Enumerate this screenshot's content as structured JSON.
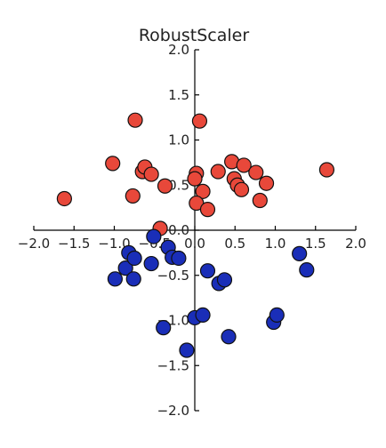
{
  "chart_data": {
    "type": "scatter",
    "title": "RobustScaler",
    "xlabel": "",
    "ylabel": "",
    "xlim": [
      -2.0,
      2.0
    ],
    "ylim": [
      -2.0,
      2.0
    ],
    "grid": false,
    "spines": "centered",
    "xticks": [
      -2.0,
      -1.5,
      -1.0,
      -0.5,
      0.0,
      0.5,
      1.0,
      1.5,
      2.0
    ],
    "xtick_labels": [
      "−2.0",
      "−1.5",
      "−1.0",
      "−0.5",
      "0.0",
      "0.5",
      "1.0",
      "1.5",
      "2.0"
    ],
    "yticks": [
      -2.0,
      -1.5,
      -1.0,
      -0.5,
      0.0,
      0.5,
      1.0,
      1.5,
      2.0
    ],
    "ytick_labels": [
      "−2.0",
      "−1.5",
      "−1.0",
      "−0.5",
      "0.0",
      "0.5",
      "1.0",
      "1.5",
      "2.0"
    ],
    "series": [
      {
        "color": "#e8483a",
        "points": [
          [
            -1.62,
            0.35
          ],
          [
            -1.02,
            0.74
          ],
          [
            -0.74,
            1.22
          ],
          [
            -0.65,
            0.65
          ],
          [
            -0.62,
            0.7
          ],
          [
            -0.54,
            0.62
          ],
          [
            -0.77,
            0.38
          ],
          [
            -0.37,
            0.49
          ],
          [
            -0.43,
            0.02
          ],
          [
            0.02,
            0.63
          ],
          [
            0.0,
            0.57
          ],
          [
            0.1,
            0.43
          ],
          [
            0.06,
            1.21
          ],
          [
            0.02,
            0.3
          ],
          [
            0.16,
            0.23
          ],
          [
            0.29,
            0.65
          ],
          [
            0.46,
            0.76
          ],
          [
            0.61,
            0.72
          ],
          [
            0.49,
            0.57
          ],
          [
            0.53,
            0.5
          ],
          [
            0.58,
            0.45
          ],
          [
            0.76,
            0.64
          ],
          [
            0.89,
            0.52
          ],
          [
            0.81,
            0.33
          ],
          [
            1.64,
            0.67
          ]
        ]
      },
      {
        "color": "#1a2eb8",
        "points": [
          [
            -0.99,
            -0.54
          ],
          [
            -0.86,
            -0.42
          ],
          [
            -0.82,
            -0.25
          ],
          [
            -0.75,
            -0.31
          ],
          [
            -0.76,
            -0.54
          ],
          [
            -0.54,
            -0.37
          ],
          [
            -0.51,
            -0.07
          ],
          [
            -0.33,
            -0.19
          ],
          [
            -0.28,
            -0.3
          ],
          [
            -0.2,
            -0.31
          ],
          [
            -0.39,
            -1.08
          ],
          [
            0.0,
            -0.97
          ],
          [
            0.1,
            -0.94
          ],
          [
            0.16,
            -0.45
          ],
          [
            0.3,
            -0.59
          ],
          [
            0.37,
            -0.55
          ],
          [
            -0.1,
            -1.33
          ],
          [
            0.42,
            -1.18
          ],
          [
            0.98,
            -1.02
          ],
          [
            1.02,
            -0.94
          ],
          [
            1.3,
            -0.26
          ],
          [
            1.39,
            -0.44
          ]
        ]
      }
    ]
  }
}
